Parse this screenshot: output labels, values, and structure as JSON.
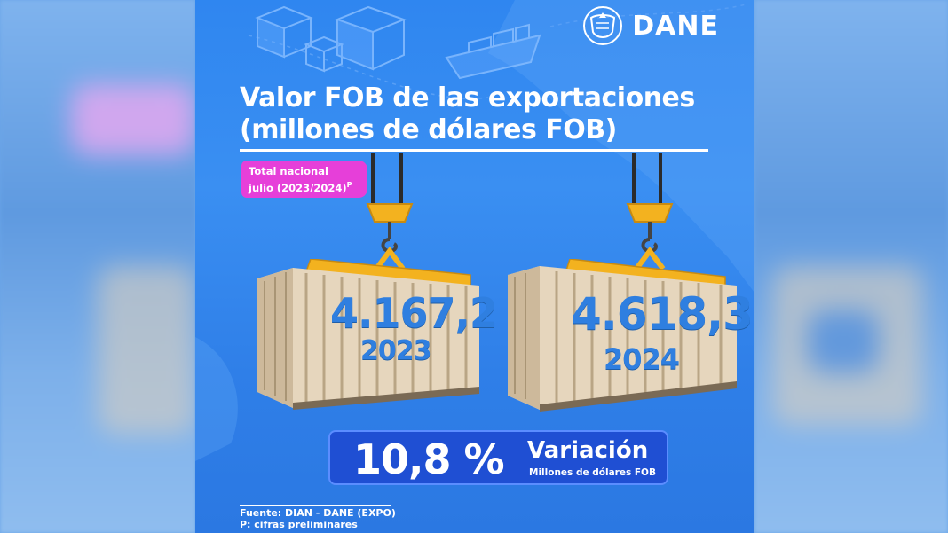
{
  "brand": {
    "name": "DANE",
    "accent": "#2f86f0",
    "badge_color": "#e63fd9",
    "variation_bg": "#1f4fd3"
  },
  "title": {
    "line1": "Valor FOB de las exportaciones",
    "line2": "(millones de dólares FOB)"
  },
  "badge": {
    "line1": "Total nacional",
    "line2": "julio (2023/2024)",
    "sup": "P"
  },
  "containers": [
    {
      "value": "4.167,2",
      "year": "2023"
    },
    {
      "value": "4.618,3",
      "year": "2024"
    }
  ],
  "variation": {
    "percent": "10,8 %",
    "label": "Variación",
    "sublabel": "Millones de dólares FOB"
  },
  "source": {
    "line1": "Fuente: DIAN - DANE (EXPO)",
    "line2": "P: cifras preliminares"
  },
  "icons": [
    "boxes-icon",
    "ship-icon",
    "crest-icon",
    "crane-hook-icon",
    "shipping-container-icon"
  ]
}
